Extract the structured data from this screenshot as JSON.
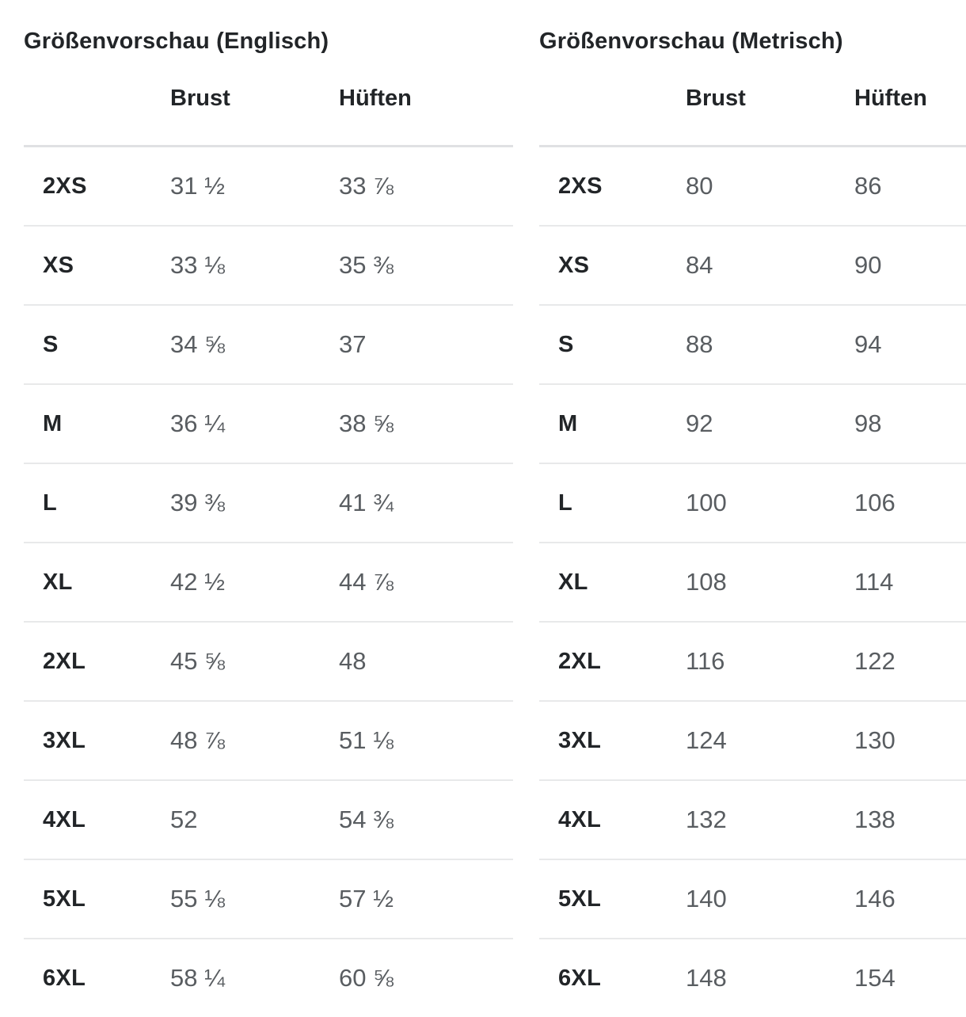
{
  "colors": {
    "background": "#ffffff",
    "heading_text": "#222528",
    "value_text": "#595d61",
    "header_divider": "#e0e1e3",
    "row_divider": "#e8e9ea"
  },
  "tables": [
    {
      "id": "english",
      "title": "Größenvorschau (Englisch)",
      "columns": [
        "Brust",
        "Hüften"
      ],
      "rows": [
        {
          "size": "2XS",
          "brust": "31 ½",
          "hueften": "33 ⅞"
        },
        {
          "size": "XS",
          "brust": "33 ⅛",
          "hueften": "35 ⅜"
        },
        {
          "size": "S",
          "brust": "34 ⅝",
          "hueften": "37"
        },
        {
          "size": "M",
          "brust": "36 ¼",
          "hueften": "38 ⅝"
        },
        {
          "size": "L",
          "brust": "39 ⅜",
          "hueften": "41 ¾"
        },
        {
          "size": "XL",
          "brust": "42 ½",
          "hueften": "44 ⅞"
        },
        {
          "size": "2XL",
          "brust": "45 ⅝",
          "hueften": "48"
        },
        {
          "size": "3XL",
          "brust": "48 ⅞",
          "hueften": "51 ⅛"
        },
        {
          "size": "4XL",
          "brust": "52",
          "hueften": "54 ⅜"
        },
        {
          "size": "5XL",
          "brust": "55 ⅛",
          "hueften": "57 ½"
        },
        {
          "size": "6XL",
          "brust": "58 ¼",
          "hueften": "60 ⅝"
        }
      ]
    },
    {
      "id": "metric",
      "title": "Größenvorschau (Metrisch)",
      "columns": [
        "Brust",
        "Hüften"
      ],
      "rows": [
        {
          "size": "2XS",
          "brust": "80",
          "hueften": "86"
        },
        {
          "size": "XS",
          "brust": "84",
          "hueften": "90"
        },
        {
          "size": "S",
          "brust": "88",
          "hueften": "94"
        },
        {
          "size": "M",
          "brust": "92",
          "hueften": "98"
        },
        {
          "size": "L",
          "brust": "100",
          "hueften": "106"
        },
        {
          "size": "XL",
          "brust": "108",
          "hueften": "114"
        },
        {
          "size": "2XL",
          "brust": "116",
          "hueften": "122"
        },
        {
          "size": "3XL",
          "brust": "124",
          "hueften": "130"
        },
        {
          "size": "4XL",
          "brust": "132",
          "hueften": "138"
        },
        {
          "size": "5XL",
          "brust": "140",
          "hueften": "146"
        },
        {
          "size": "6XL",
          "brust": "148",
          "hueften": "154"
        }
      ]
    }
  ]
}
